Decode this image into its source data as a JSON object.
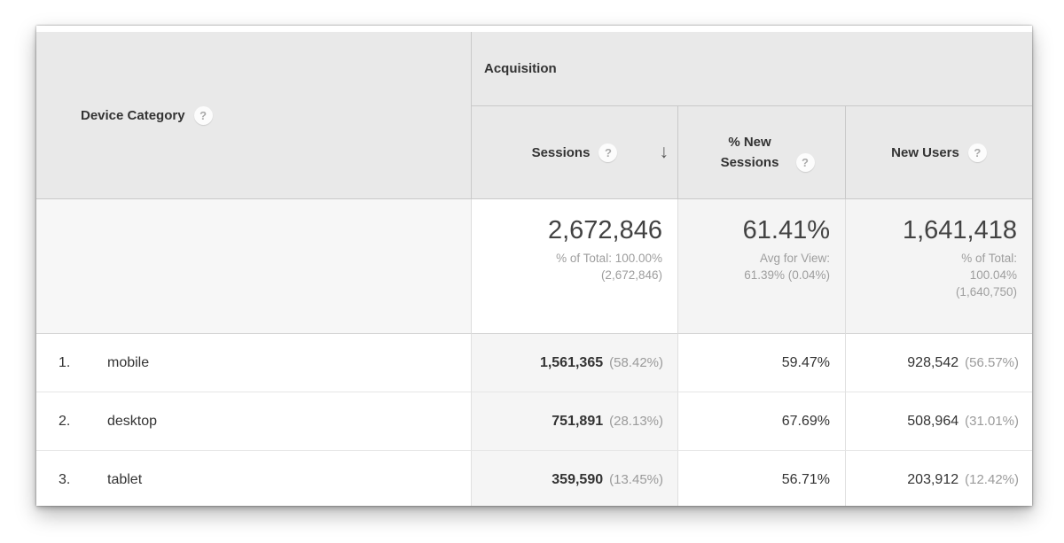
{
  "table": {
    "dimension_header": {
      "label": "Device Category"
    },
    "group_header": {
      "label": "Acquisition"
    },
    "columns": {
      "sessions": {
        "label": "Sessions",
        "sorted": "desc"
      },
      "percent_new_sessions": {
        "label": "% New Sessions"
      },
      "new_users": {
        "label": "New Users"
      }
    },
    "summary": {
      "sessions": {
        "value": "2,672,846",
        "subs": [
          "% of Total: 100.00%",
          "(2,672,846)"
        ]
      },
      "percent_new_sessions": {
        "value": "61.41%",
        "subs": [
          "Avg for View:",
          "61.39% (0.04%)"
        ]
      },
      "new_users": {
        "value": "1,641,418",
        "subs": [
          "% of Total:",
          "100.04%",
          "(1,640,750)"
        ]
      }
    },
    "rows": [
      {
        "rank": "1.",
        "device": "mobile",
        "sessions": "1,561,365",
        "sessions_pct": "(58.42%)",
        "percent_new_sessions": "59.47%",
        "new_users": "928,542",
        "new_users_pct": "(56.57%)"
      },
      {
        "rank": "2.",
        "device": "desktop",
        "sessions": "751,891",
        "sessions_pct": "(28.13%)",
        "percent_new_sessions": "67.69%",
        "new_users": "508,964",
        "new_users_pct": "(31.01%)"
      },
      {
        "rank": "3.",
        "device": "tablet",
        "sessions": "359,590",
        "sessions_pct": "(13.45%)",
        "percent_new_sessions": "56.71%",
        "new_users": "203,912",
        "new_users_pct": "(12.42%)"
      }
    ]
  },
  "icons": {
    "help": "?",
    "sort_desc": "↓"
  }
}
